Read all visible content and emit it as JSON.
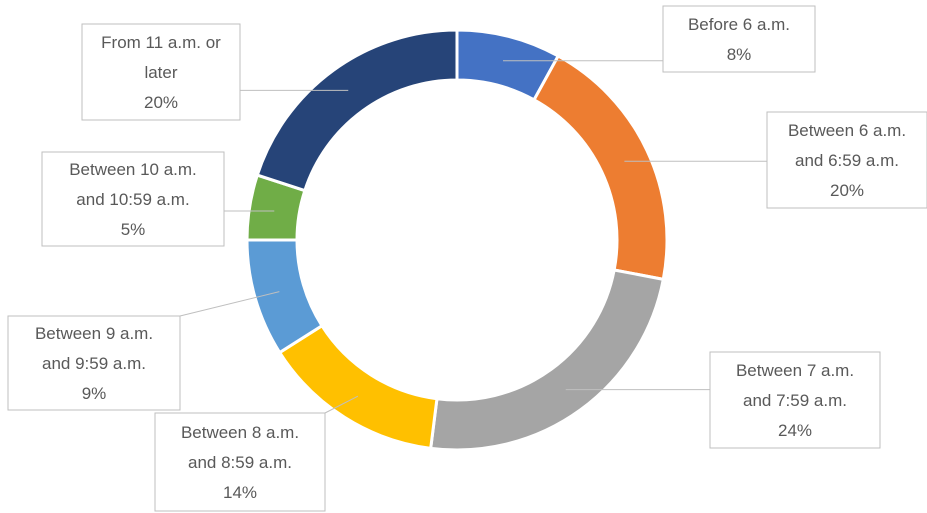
{
  "chart_data": {
    "type": "pie",
    "variant": "doughnut",
    "slices": [
      {
        "label_lines": [
          "Before 6 a.m."
        ],
        "value_label": "8%",
        "value": 8,
        "color": "#4472C4"
      },
      {
        "label_lines": [
          "Between 6 a.m.",
          "and 6:59 a.m."
        ],
        "value_label": "20%",
        "value": 20,
        "color": "#ED7D31"
      },
      {
        "label_lines": [
          "Between 7 a.m.",
          "and 7:59 a.m."
        ],
        "value_label": "24%",
        "value": 24,
        "color": "#A5A5A5"
      },
      {
        "label_lines": [
          "Between 8 a.m.",
          "and 8:59 a.m."
        ],
        "value_label": "14%",
        "value": 14,
        "color": "#FFC000"
      },
      {
        "label_lines": [
          "Between 9 a.m.",
          "and 9:59 a.m."
        ],
        "value_label": "9%",
        "value": 9,
        "color": "#5B9BD5"
      },
      {
        "label_lines": [
          "Between 10 a.m.",
          "and 10:59 a.m."
        ],
        "value_label": "5%",
        "value": 5,
        "color": "#70AD47"
      },
      {
        "label_lines": [
          "From 11 a.m. or",
          "later"
        ],
        "value_label": "20%",
        "value": 20,
        "color": "#264478"
      }
    ]
  }
}
